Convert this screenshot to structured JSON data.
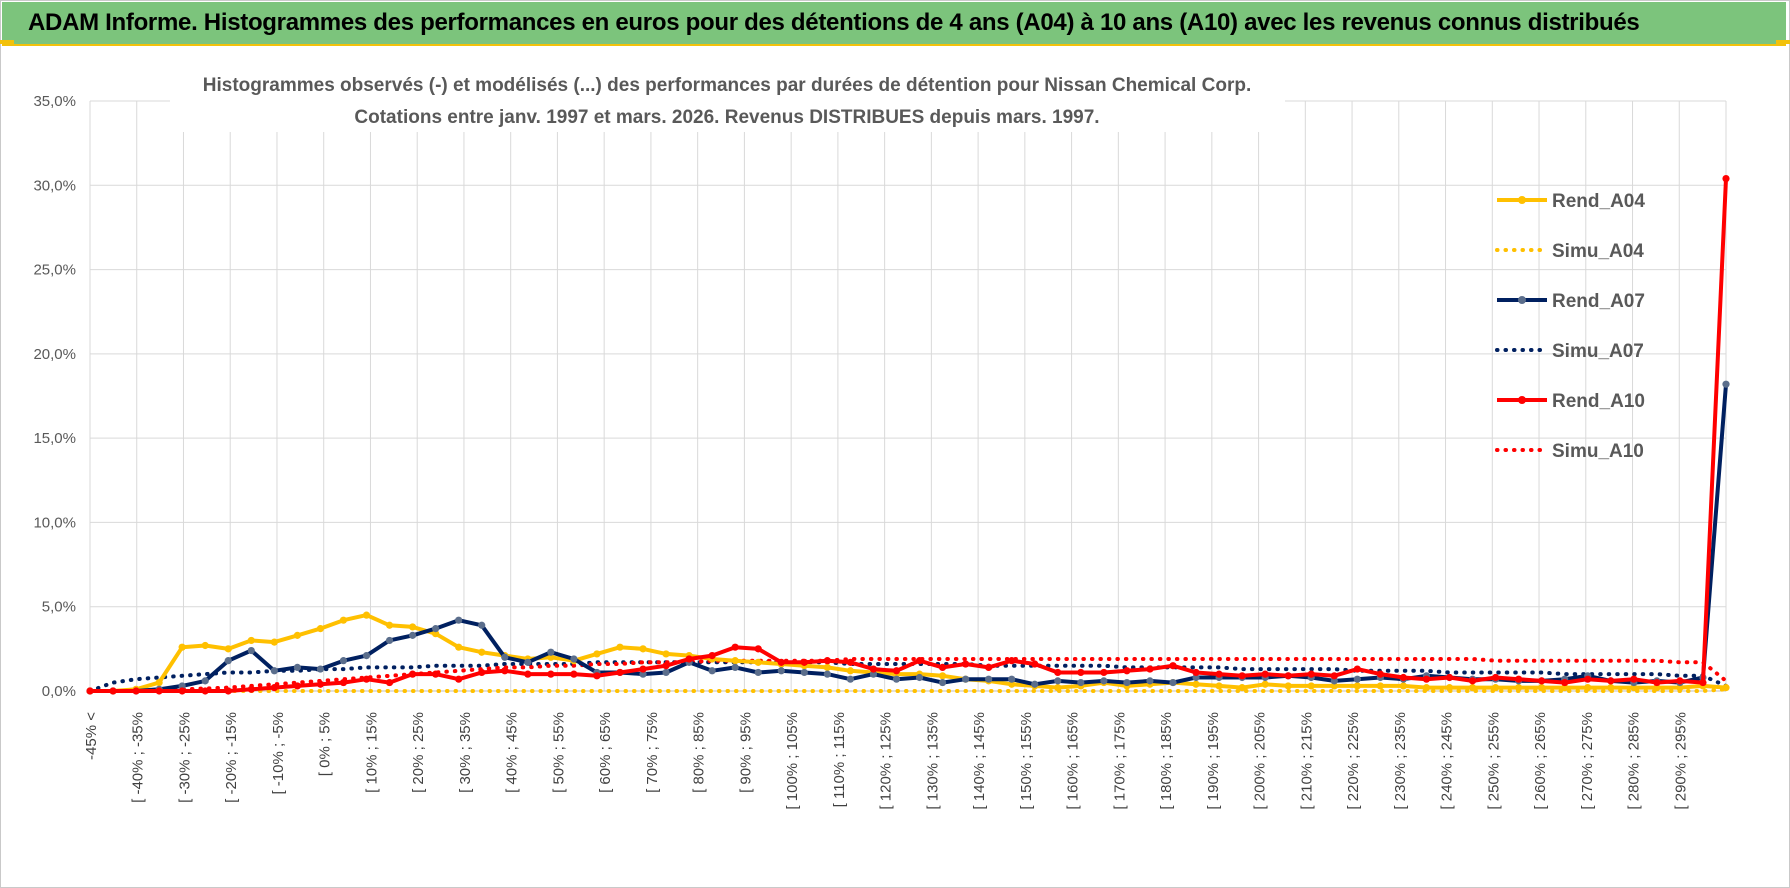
{
  "banner": {
    "title": "ADAM Informe. Histogrammes des performances en euros pour des détentions de 4 ans (A04) à 10 ans (A10) avec les revenus connus distribués"
  },
  "colors": {
    "banner_bg": "#7cc47c",
    "accent": "#f2c10b",
    "a04": "#ffc000",
    "a07": "#002060",
    "a07_marker": "#5b6e8c",
    "a10": "#ff0000",
    "grid": "#d9d9d9"
  },
  "chart_data": {
    "type": "line",
    "title_line1": "Histogrammes observés (-) et modélisés (...) des performances par durées de détention pour Nissan Chemical Corp.",
    "title_line2": "Cotations entre janv. 1997 et mars. 2026.  Revenus DISTRIBUES depuis mars. 1997.",
    "ylim": [
      0,
      35
    ],
    "yticks": [
      "0,0%",
      "5,0%",
      "10,0%",
      "15,0%",
      "20,0%",
      "25,0%",
      "30,0%",
      "35,0%"
    ],
    "grid": true,
    "legend_position": "right",
    "xtick_labels": [
      "-45% <",
      "[ -40% ; -35%",
      "[ -30% ; -25%",
      "[ -20% ; -15%",
      "[ -10% ; -5%",
      "[ 0% ; 5%",
      "[ 10% ; 15%",
      "[ 20% ; 25%",
      "[ 30% ; 35%",
      "[ 40% ; 45%",
      "[ 50% ; 55%",
      "[ 60% ; 65%",
      "[ 70% ; 75%",
      "[ 80% ; 85%",
      "[ 90% ; 95%",
      "[ 100% ; 105%",
      "[ 110% ; 115%",
      "[ 120% ; 125%",
      "[ 130% ; 135%",
      "[ 140% ; 145%",
      "[ 150% ; 155%",
      "[ 160% ; 165%",
      "[ 170% ; 175%",
      "[ 180% ; 185%",
      "[ 190% ; 195%",
      "[ 200% ; 205%",
      "[ 210% ; 215%",
      "[ 220% ; 225%",
      "[ 230% ; 235%",
      "[ 240% ; 245%",
      "[ 250% ; 255%",
      "[ 260% ; 265%",
      "[ 270% ; 275%",
      "[ 280% ; 285%",
      "[ 290% ; 295%"
    ],
    "series": [
      {
        "name": "Rend_A04",
        "style": "solid",
        "color": "#ffc000",
        "values": [
          0,
          0,
          0.1,
          0.5,
          2.6,
          2.7,
          2.5,
          3.0,
          2.9,
          3.3,
          3.7,
          4.2,
          4.5,
          3.9,
          3.8,
          3.4,
          2.6,
          2.3,
          2.1,
          1.9,
          2.0,
          1.8,
          2.2,
          2.6,
          2.5,
          2.2,
          2.1,
          1.9,
          1.8,
          1.7,
          1.6,
          1.5,
          1.4,
          1.2,
          1.1,
          1.0,
          1.0,
          0.9,
          0.7,
          0.6,
          0.4,
          0.3,
          0.2,
          0.3,
          0.5,
          0.3,
          0.4,
          0.5,
          0.4,
          0.3,
          0.2,
          0.4,
          0.3,
          0.3,
          0.3,
          0.3,
          0.3,
          0.3,
          0.2,
          0.2,
          0.2,
          0.2,
          0.2,
          0.2,
          0.2,
          0.2,
          0.2,
          0.2,
          0.2,
          0.2,
          0.3,
          0.2
        ]
      },
      {
        "name": "Simu_A04",
        "style": "dotted",
        "color": "#ffc000",
        "values": [
          0,
          0,
          0,
          0,
          0,
          0,
          0,
          0,
          0,
          0,
          0,
          0,
          0,
          0,
          0,
          0,
          0,
          0,
          0,
          0,
          0,
          0,
          0,
          0,
          0,
          0,
          0,
          0,
          0,
          0,
          0,
          0,
          0,
          0,
          0,
          0,
          0,
          0,
          0,
          0,
          0,
          0,
          0,
          0,
          0,
          0,
          0,
          0,
          0,
          0,
          0,
          0,
          0,
          0,
          0,
          0,
          0,
          0,
          0,
          0,
          0,
          0,
          0,
          0,
          0,
          0,
          0,
          0,
          0,
          0,
          0,
          0.1
        ]
      },
      {
        "name": "Rend_A07",
        "style": "solid",
        "color": "#002060",
        "values": [
          0,
          0,
          0,
          0.1,
          0.3,
          0.6,
          1.8,
          2.4,
          1.2,
          1.4,
          1.3,
          1.8,
          2.1,
          3.0,
          3.3,
          3.7,
          4.2,
          3.9,
          2.0,
          1.7,
          2.3,
          1.9,
          1.1,
          1.1,
          1.0,
          1.1,
          1.7,
          1.2,
          1.4,
          1.1,
          1.2,
          1.1,
          1.0,
          0.7,
          1.0,
          0.7,
          0.8,
          0.5,
          0.7,
          0.7,
          0.7,
          0.4,
          0.6,
          0.5,
          0.6,
          0.5,
          0.6,
          0.5,
          0.8,
          0.8,
          0.8,
          0.8,
          0.9,
          0.8,
          0.6,
          0.7,
          0.8,
          0.7,
          0.9,
          0.8,
          0.7,
          0.7,
          0.6,
          0.6,
          0.7,
          0.9,
          0.6,
          0.5,
          0.6,
          0.5,
          0.8,
          18.2
        ]
      },
      {
        "name": "Simu_A07",
        "style": "dotted",
        "color": "#002060",
        "values": [
          0,
          0.5,
          0.7,
          0.8,
          0.9,
          1.0,
          1.1,
          1.1,
          1.2,
          1.2,
          1.3,
          1.3,
          1.4,
          1.4,
          1.4,
          1.5,
          1.5,
          1.5,
          1.6,
          1.6,
          1.6,
          1.6,
          1.7,
          1.7,
          1.7,
          1.7,
          1.7,
          1.7,
          1.7,
          1.7,
          1.7,
          1.7,
          1.7,
          1.6,
          1.6,
          1.6,
          1.6,
          1.6,
          1.6,
          1.5,
          1.5,
          1.5,
          1.5,
          1.5,
          1.5,
          1.4,
          1.4,
          1.4,
          1.4,
          1.4,
          1.3,
          1.3,
          1.3,
          1.3,
          1.3,
          1.2,
          1.2,
          1.2,
          1.2,
          1.1,
          1.1,
          1.1,
          1.1,
          1.1,
          1.0,
          1.0,
          1.0,
          1.0,
          1.0,
          0.9,
          0.9,
          0.3
        ]
      },
      {
        "name": "Rend_A10",
        "style": "solid",
        "color": "#ff0000",
        "values": [
          0,
          0,
          0,
          0,
          0,
          0,
          0,
          0.1,
          0.2,
          0.3,
          0.4,
          0.5,
          0.7,
          0.5,
          1.0,
          1.0,
          0.7,
          1.1,
          1.2,
          1.0,
          1.0,
          1.0,
          0.9,
          1.1,
          1.3,
          1.5,
          1.9,
          2.1,
          2.6,
          2.5,
          1.7,
          1.7,
          1.8,
          1.7,
          1.3,
          1.2,
          1.8,
          1.4,
          1.6,
          1.4,
          1.8,
          1.6,
          1.1,
          1.1,
          1.1,
          1.2,
          1.3,
          1.5,
          1.1,
          1.0,
          0.9,
          1.0,
          0.9,
          1.0,
          0.9,
          1.3,
          1.0,
          0.8,
          0.7,
          0.8,
          0.6,
          0.8,
          0.7,
          0.6,
          0.5,
          0.7,
          0.6,
          0.7,
          0.5,
          0.6,
          0.5,
          30.4
        ]
      },
      {
        "name": "Simu_A10",
        "style": "dotted",
        "color": "#ff0000",
        "values": [
          0,
          0,
          0,
          0.05,
          0.1,
          0.15,
          0.2,
          0.3,
          0.4,
          0.5,
          0.6,
          0.7,
          0.8,
          0.9,
          1.0,
          1.1,
          1.2,
          1.3,
          1.4,
          1.4,
          1.5,
          1.5,
          1.6,
          1.6,
          1.7,
          1.7,
          1.7,
          1.8,
          1.8,
          1.8,
          1.8,
          1.8,
          1.8,
          1.9,
          1.9,
          1.9,
          1.9,
          1.9,
          1.9,
          1.9,
          1.9,
          1.9,
          1.9,
          1.9,
          1.9,
          1.9,
          1.9,
          1.9,
          1.9,
          1.9,
          1.9,
          1.9,
          1.9,
          1.9,
          1.9,
          1.9,
          1.9,
          1.9,
          1.9,
          1.9,
          1.9,
          1.8,
          1.8,
          1.8,
          1.8,
          1.8,
          1.8,
          1.8,
          1.8,
          1.7,
          1.7,
          0.6
        ]
      }
    ]
  }
}
